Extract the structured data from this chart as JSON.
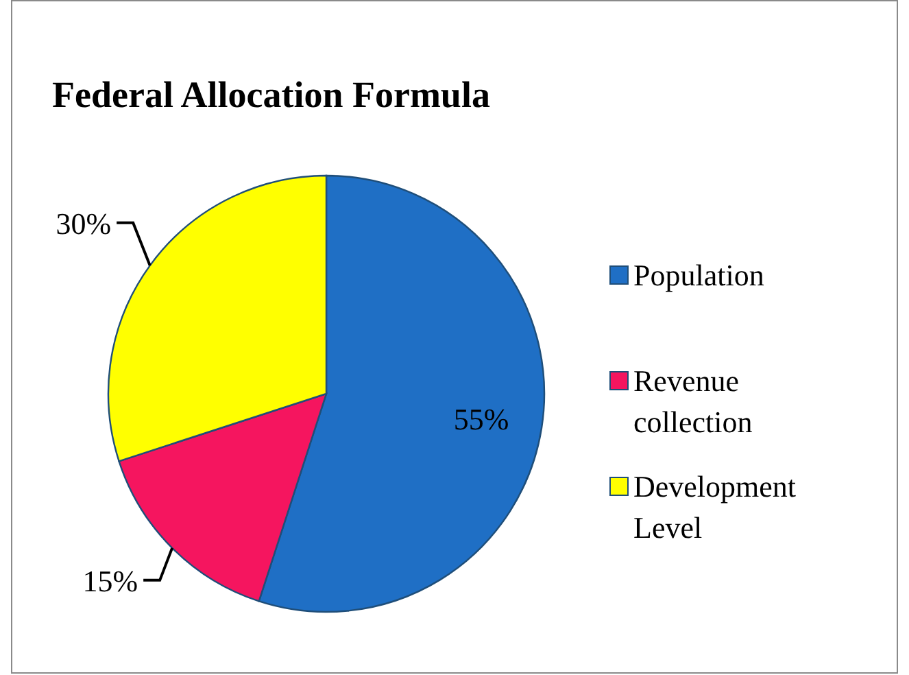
{
  "chart_data": {
    "type": "pie",
    "title": "Federal Allocation Formula",
    "categories": [
      "Population",
      "Revenue collection",
      "Development Level"
    ],
    "values": [
      55,
      15,
      30
    ],
    "value_labels": [
      "55%",
      "15%",
      "30%"
    ],
    "colors": [
      "#1f6fc5",
      "#f5155f",
      "#ffff00"
    ],
    "legend": "right"
  }
}
